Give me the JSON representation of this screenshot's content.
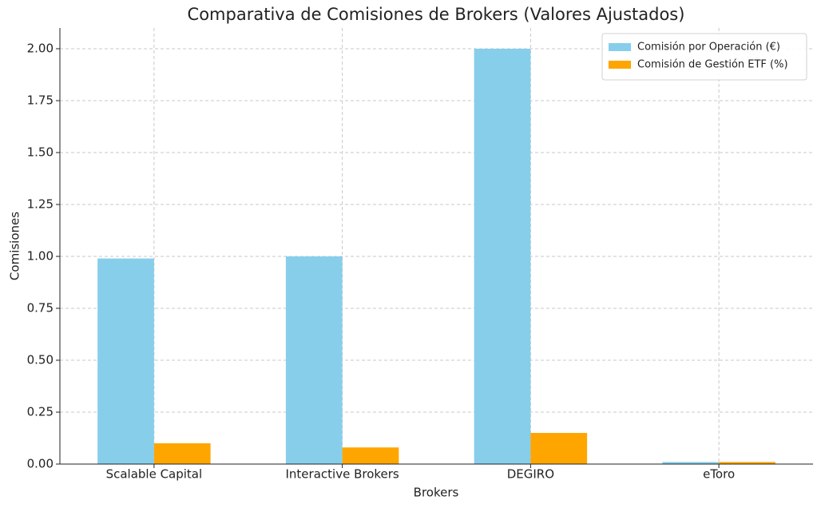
{
  "chart_data": {
    "type": "bar",
    "title": "Comparativa de Comisiones de Brokers (Valores Ajustados)",
    "xlabel": "Brokers",
    "ylabel": "Comisiones",
    "categories": [
      "Scalable Capital",
      "Interactive Brokers",
      "DEGIRO",
      "eToro"
    ],
    "series": [
      {
        "name": "Comisión por Operación (€)",
        "color": "#87ceeb",
        "values": [
          0.99,
          1.0,
          2.0,
          0.01
        ]
      },
      {
        "name": "Comisión de Gestión ETF (%)",
        "color": "#ffa500",
        "values": [
          0.1,
          0.08,
          0.15,
          0.01
        ]
      }
    ],
    "ylim": [
      0,
      2.1
    ],
    "yticks": [
      {
        "value": 0,
        "label": "0.00"
      },
      0.25,
      {
        "value": 0.5,
        "label": "0.50"
      },
      0.75,
      {
        "value": 1,
        "label": "1.00"
      },
      1.25,
      {
        "value": 1.5,
        "label": "1.50"
      },
      1.75,
      {
        "value": 2,
        "label": "2.00"
      }
    ],
    "grid": true,
    "legend": "upper right"
  }
}
